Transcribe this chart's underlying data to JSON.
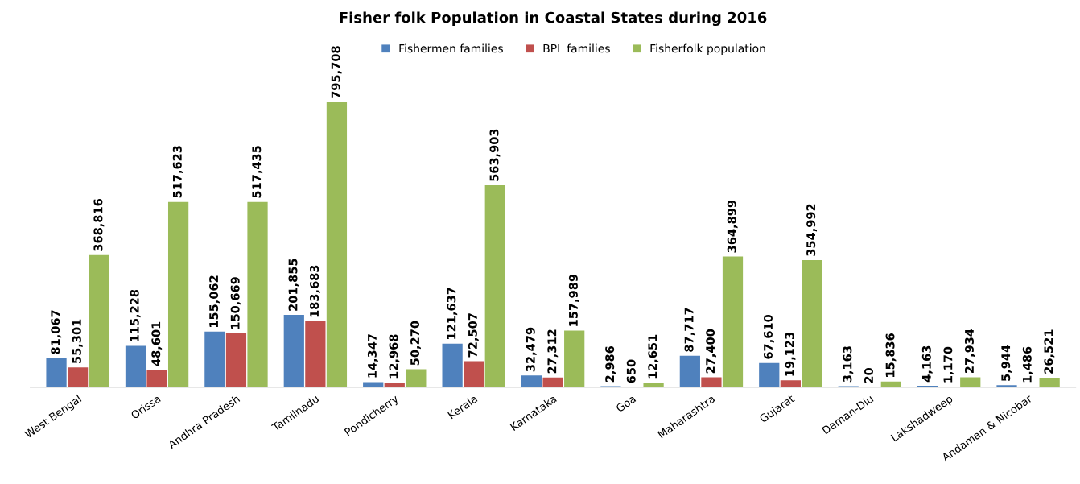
{
  "chart_data": {
    "type": "bar",
    "title": "Fisher folk Population in Coastal States during 2016",
    "categories": [
      "West Bengal",
      "Orissa",
      "Andhra Pradesh",
      "Tamilnadu",
      "Pondicherry",
      "Kerala",
      "Karnataka",
      "Goa",
      "Maharashtra",
      "Gujarat",
      "Daman-Diu",
      "Lakshadweep",
      "Andaman & Nicobar"
    ],
    "series": [
      {
        "name": "Fishermen families",
        "color": "#4f81bd",
        "values": [
          81067,
          115228,
          155062,
          201855,
          14347,
          121637,
          32479,
          2986,
          87717,
          67610,
          3163,
          4163,
          5944
        ],
        "value_labels": [
          "81,067",
          "115,228",
          "155,062",
          "201,855",
          "14,347",
          "121,637",
          "32,479",
          "2,986",
          "87,717",
          "67,610",
          "3,163",
          "4,163",
          "5,944"
        ]
      },
      {
        "name": "BPL families",
        "color": "#c0504d",
        "values": [
          55301,
          48601,
          150669,
          183683,
          12968,
          72507,
          27312,
          650,
          27400,
          19123,
          20,
          1170,
          1486
        ],
        "value_labels": [
          "55,301",
          "48,601",
          "150,669",
          "183,683",
          "12,968",
          "72,507",
          "27,312",
          "650",
          "27,400",
          "19,123",
          "20",
          "1,170",
          "1,486"
        ]
      },
      {
        "name": "Fisherfolk population",
        "color": "#9bbb59",
        "values": [
          368816,
          517623,
          517435,
          795708,
          50270,
          563903,
          157989,
          12651,
          364899,
          354992,
          15836,
          27934,
          26521
        ],
        "value_labels": [
          "368,816",
          "517,623",
          "517,435",
          "795,708",
          "50,270",
          "563,903",
          "157,989",
          "12,651",
          "364,899",
          "354,992",
          "15,836",
          "27,934",
          "26,521"
        ]
      }
    ],
    "legend": "top"
  }
}
